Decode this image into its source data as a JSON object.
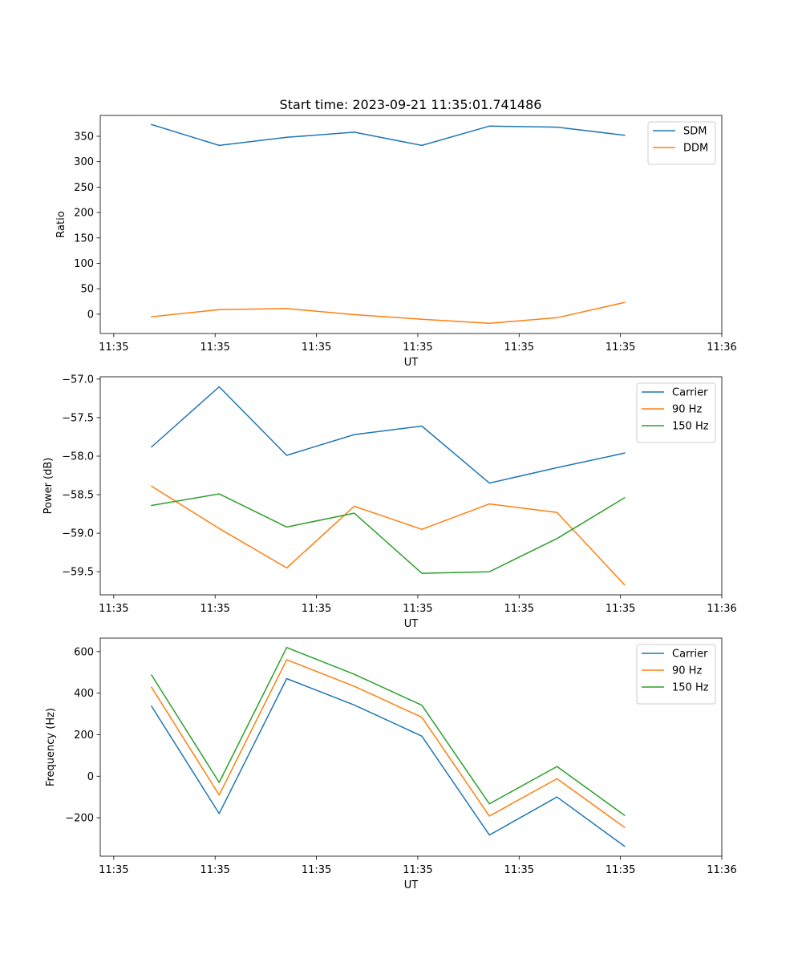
{
  "colors": {
    "c0": "#1f77b4",
    "c1": "#ff7f0e",
    "c2": "#2ca02c"
  },
  "chart_data": [
    {
      "type": "line",
      "title": "Start time: 2023-09-21 11:35:01.741486",
      "xlabel": "UT",
      "ylabel": "Ratio",
      "xlim": [
        0,
        9.2
      ],
      "x": [
        0.76,
        1.76,
        2.76,
        3.76,
        4.76,
        5.76,
        6.76,
        7.76
      ],
      "xticks": [
        0.2,
        1.7,
        3.2,
        4.7,
        6.2,
        7.7,
        9.2
      ],
      "xtick_labels": [
        "11:35",
        "11:35",
        "11:35",
        "11:35",
        "11:35",
        "11:35",
        "11:36"
      ],
      "ylim": [
        -38,
        391
      ],
      "yticks": [
        0,
        50,
        100,
        150,
        200,
        250,
        300,
        350
      ],
      "ytick_labels": [
        "0",
        "50",
        "100",
        "150",
        "200",
        "250",
        "300",
        "350"
      ],
      "legend_loc": "upper right",
      "series": [
        {
          "name": "SDM",
          "values": [
            373,
            332,
            348,
            358,
            332,
            370,
            368,
            352
          ]
        },
        {
          "name": "DDM",
          "values": [
            -5,
            9,
            11,
            -1,
            -10,
            -18,
            -7,
            23
          ]
        }
      ]
    },
    {
      "type": "line",
      "title": "",
      "xlabel": "UT",
      "ylabel": "Power (dB)",
      "xlim": [
        0,
        9.2
      ],
      "x": [
        0.76,
        1.76,
        2.76,
        3.76,
        4.76,
        5.76,
        6.76,
        7.76
      ],
      "xticks": [
        0.2,
        1.7,
        3.2,
        4.7,
        6.2,
        7.7,
        9.2
      ],
      "xtick_labels": [
        "11:35",
        "11:35",
        "11:35",
        "11:35",
        "11:35",
        "11:35",
        "11:36"
      ],
      "ylim": [
        -59.8,
        -56.97
      ],
      "yticks": [
        -59.5,
        -59.0,
        -58.5,
        -58.0,
        -57.5,
        -57.0
      ],
      "ytick_labels": [
        "−59.5",
        "−59.0",
        "−58.5",
        "−58.0",
        "−57.5",
        "−57.0"
      ],
      "legend_loc": "upper right",
      "series": [
        {
          "name": "Carrier",
          "values": [
            -57.88,
            -57.1,
            -57.99,
            -57.72,
            -57.61,
            -58.35,
            -58.15,
            -57.96
          ]
        },
        {
          "name": "90 Hz",
          "values": [
            -58.39,
            -58.94,
            -59.45,
            -58.65,
            -58.95,
            -58.62,
            -58.73,
            -59.67
          ]
        },
        {
          "name": "150 Hz",
          "values": [
            -58.64,
            -58.49,
            -58.92,
            -58.74,
            -59.52,
            -59.5,
            -59.07,
            -58.54
          ]
        }
      ]
    },
    {
      "type": "line",
      "title": "",
      "xlabel": "UT",
      "ylabel": "Frequency (Hz)",
      "xlim": [
        0,
        9.2
      ],
      "x": [
        0.76,
        1.76,
        2.76,
        3.76,
        4.76,
        5.76,
        6.76,
        7.76
      ],
      "xticks": [
        0.2,
        1.7,
        3.2,
        4.7,
        6.2,
        7.7,
        9.2
      ],
      "xtick_labels": [
        "11:35",
        "11:35",
        "11:35",
        "11:35",
        "11:35",
        "11:35",
        "11:36"
      ],
      "ylim": [
        -385,
        665
      ],
      "yticks": [
        -200,
        0,
        200,
        400,
        600
      ],
      "ytick_labels": [
        "−200",
        "0",
        "200",
        "400",
        "600"
      ],
      "legend_loc": "upper right",
      "series": [
        {
          "name": "Carrier",
          "values": [
            337,
            -180,
            470,
            343,
            193,
            -283,
            -100,
            -337
          ]
        },
        {
          "name": "90 Hz",
          "values": [
            428,
            -90,
            561,
            433,
            284,
            -192,
            -12,
            -246
          ]
        },
        {
          "name": "150 Hz",
          "values": [
            487,
            -30,
            620,
            491,
            342,
            -133,
            47,
            -188
          ]
        }
      ]
    }
  ]
}
